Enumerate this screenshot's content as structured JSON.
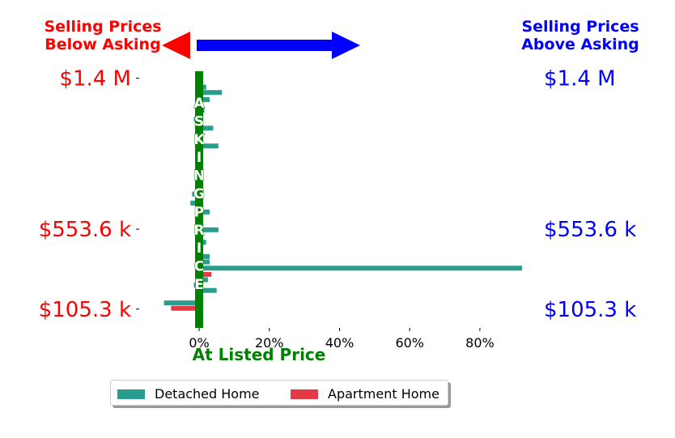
{
  "colors": {
    "detached": "#2a9d8f",
    "apartment": "#e63946",
    "below": "#ff0000",
    "above": "#0000ff",
    "asking": "#008000"
  },
  "annotations": {
    "below_line1": "Selling Prices",
    "below_line2": "Below Asking",
    "above_line1": "Selling Prices",
    "above_line2": "Above Asking",
    "asking_letters": [
      "A",
      "S",
      "K",
      "I",
      "N",
      "G",
      "P",
      "R",
      "I",
      "C",
      "E"
    ],
    "at_listed": "At Listed Price"
  },
  "chart_data": {
    "type": "bar",
    "orientation": "horizontal",
    "xlabel": "At Listed Price",
    "xlim": [
      -0.12,
      0.92
    ],
    "xticks": [
      "0%",
      "20%",
      "40%",
      "60%",
      "80%"
    ],
    "ylim": [
      0,
      1.43
    ],
    "left_yticks": [
      {
        "value": 1.4,
        "label": "$1.4 M"
      },
      {
        "value": 0.5536,
        "label": "$553.6 k"
      },
      {
        "value": 0.1053,
        "label": "$105.3 k"
      }
    ],
    "right_yticks": [
      {
        "value": 1.4,
        "label": "$1.4 M"
      },
      {
        "value": 0.5536,
        "label": "$553.6 k"
      },
      {
        "value": 0.1053,
        "label": "$105.3 k"
      }
    ],
    "series": [
      {
        "name": "Detached Home",
        "points": [
          {
            "y": 1.35,
            "x": 0.02
          },
          {
            "y": 1.32,
            "x": 0.065
          },
          {
            "y": 1.28,
            "x": 0.03
          },
          {
            "y": 1.22,
            "x": 0.015
          },
          {
            "y": 1.17,
            "x": -0.015
          },
          {
            "y": 1.12,
            "x": 0.04
          },
          {
            "y": 1.02,
            "x": 0.055
          },
          {
            "y": 0.97,
            "x": -0.01
          },
          {
            "y": 0.88,
            "x": 0.01
          },
          {
            "y": 0.82,
            "x": -0.008
          },
          {
            "y": 0.75,
            "x": -0.02
          },
          {
            "y": 0.7,
            "x": -0.025
          },
          {
            "y": 0.65,
            "x": 0.03
          },
          {
            "y": 0.6,
            "x": -0.01
          },
          {
            "y": 0.55,
            "x": 0.055
          },
          {
            "y": 0.48,
            "x": 0.02
          },
          {
            "y": 0.43,
            "x": 0.01
          },
          {
            "y": 0.4,
            "x": 0.03
          },
          {
            "y": 0.37,
            "x": 0.03
          },
          {
            "y": 0.335,
            "x": 0.92
          },
          {
            "y": 0.3,
            "x": 0.01
          },
          {
            "y": 0.27,
            "x": 0.025
          },
          {
            "y": 0.24,
            "x": -0.015
          },
          {
            "y": 0.21,
            "x": 0.05
          },
          {
            "y": 0.14,
            "x": -0.1
          }
        ]
      },
      {
        "name": "Apartment Home",
        "points": [
          {
            "y": 0.3,
            "x": 0.035
          },
          {
            "y": 0.11,
            "x": -0.08
          }
        ]
      }
    ],
    "legend": "bottom-center"
  }
}
